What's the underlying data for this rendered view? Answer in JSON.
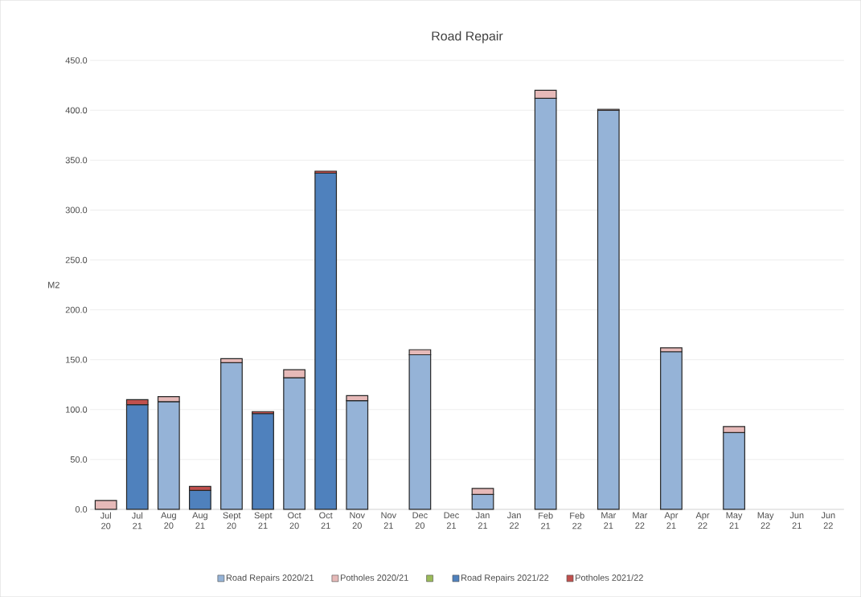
{
  "chart_data": {
    "type": "bar",
    "title": "Road Repair",
    "ylabel": "M2",
    "categories": [
      "Jul 20",
      "Jul 21",
      "Aug 20",
      "Aug 21",
      "Sept 20",
      "Sept 21",
      "Oct 20",
      "Oct 21",
      "Nov 20",
      "Nov 21",
      "Dec 20",
      "Dec 21",
      "Jan 21",
      "Jan 22",
      "Feb 21",
      "Feb 22",
      "Mar 21",
      "Mar 22",
      "Apr 21",
      "Apr 22",
      "May 21",
      "May 22",
      "Jun 21",
      "Jun 22"
    ],
    "stacked": true,
    "series": [
      {
        "name": "Road Repairs 2020/21",
        "color": "#95b3d7",
        "values": [
          null,
          null,
          108,
          null,
          147,
          null,
          132,
          null,
          109,
          null,
          155,
          null,
          15,
          null,
          412,
          null,
          400,
          null,
          158,
          null,
          77,
          null,
          null,
          null
        ]
      },
      {
        "name": "Potholes 2020/21",
        "color": "#e6b9b8",
        "values": [
          9,
          null,
          5,
          null,
          4,
          null,
          8,
          null,
          5,
          null,
          5,
          null,
          6,
          null,
          8,
          null,
          1,
          null,
          4,
          null,
          6,
          null,
          null,
          null
        ]
      },
      {
        "color": "#9bbb59",
        "values": [
          null,
          null,
          null,
          null,
          null,
          null,
          null,
          null,
          null,
          null,
          null,
          null,
          null,
          null,
          null,
          null,
          null,
          null,
          null,
          null,
          null,
          null,
          null,
          null
        ]
      },
      {
        "name": "Road Repairs 2021/22",
        "color": "#4f81bd",
        "values": [
          null,
          105,
          null,
          19,
          null,
          96,
          null,
          337,
          null,
          null,
          null,
          null,
          null,
          null,
          null,
          null,
          null,
          null,
          null,
          null,
          null,
          null,
          null,
          null
        ]
      },
      {
        "name": "Potholes 2021/22",
        "color": "#c0504d",
        "values": [
          null,
          5,
          null,
          4,
          null,
          2,
          null,
          2,
          null,
          null,
          null,
          null,
          null,
          null,
          null,
          null,
          null,
          null,
          null,
          null,
          null,
          null,
          null,
          null
        ]
      }
    ],
    "ylim": [
      0,
      450
    ],
    "yticks": [
      {
        "value": 0,
        "label": "0.0"
      },
      {
        "value": 50,
        "label": "50.0"
      },
      {
        "value": 100,
        "label": "100.0"
      },
      {
        "value": 150,
        "label": "150.0"
      },
      {
        "value": 200,
        "label": "200.0"
      },
      {
        "value": 250,
        "label": "250.0"
      },
      {
        "value": 300,
        "label": "300.0"
      },
      {
        "value": 350,
        "label": "350.0"
      },
      {
        "value": 400,
        "label": "400.0"
      },
      {
        "value": 450,
        "label": "450.0"
      }
    ],
    "grid": "y",
    "legend": "bottom"
  }
}
